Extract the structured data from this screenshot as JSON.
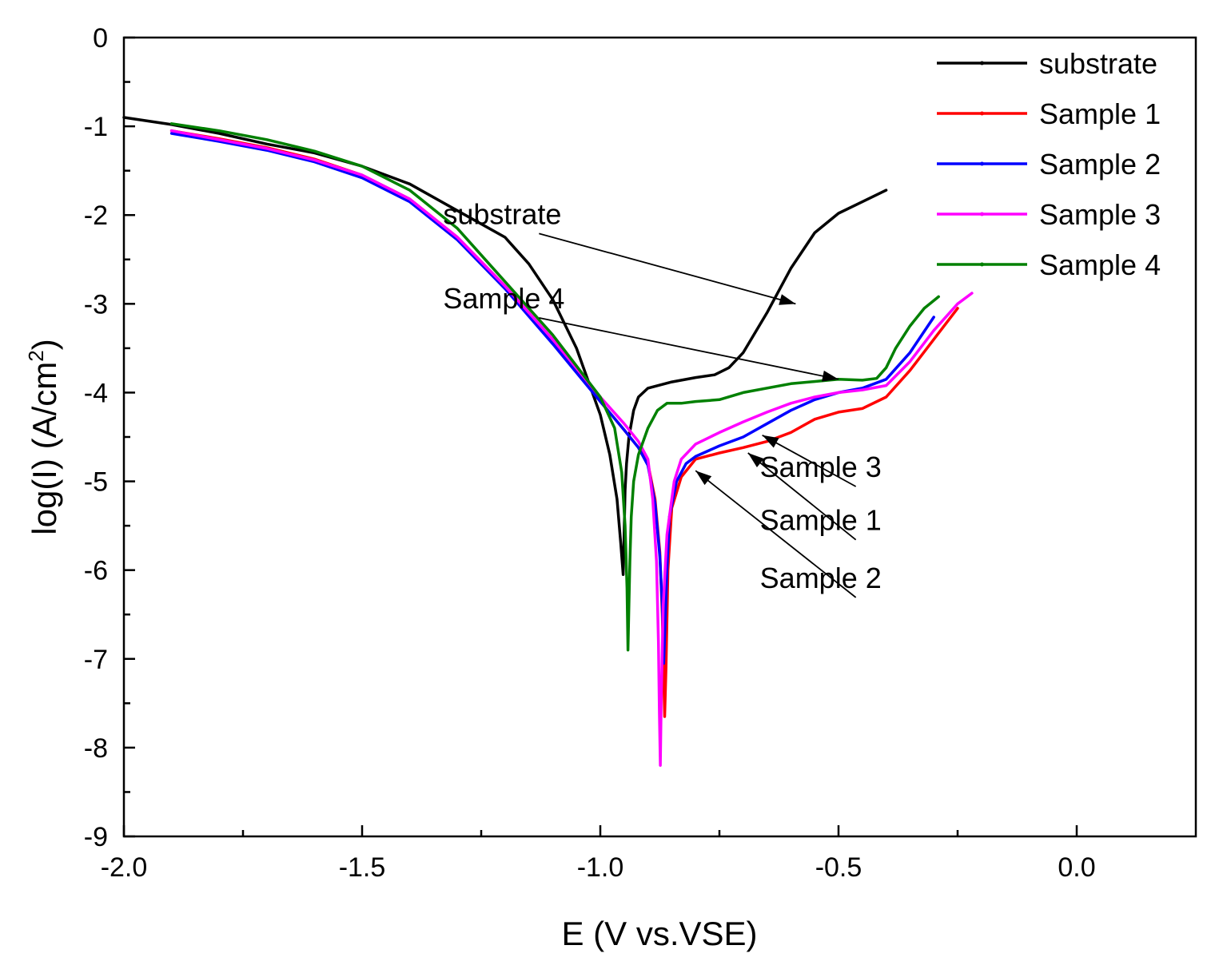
{
  "chart_data": {
    "type": "line",
    "title": "",
    "xlabel": "E (V vs.VSE)",
    "ylabel_parts": [
      "log(I) (A/cm",
      "2",
      ")"
    ],
    "xlim": [
      -2.0,
      0.25
    ],
    "ylim": [
      -9,
      0
    ],
    "x_ticks": [
      -2.0,
      -1.5,
      -1.0,
      -0.5,
      0.0
    ],
    "x_tick_labels": [
      "-2.0",
      "-1.5",
      "-1.0",
      "-0.5",
      "0.0"
    ],
    "x_minor_ticks": [
      -1.75,
      -1.25,
      -0.75,
      -0.25
    ],
    "y_ticks": [
      0,
      -1,
      -2,
      -3,
      -4,
      -5,
      -6,
      -7,
      -8,
      -9
    ],
    "y_tick_labels": [
      "0",
      "-1",
      "-2",
      "-3",
      "-4",
      "-5",
      "-6",
      "-7",
      "-8",
      "-9"
    ],
    "y_minor_ticks": [
      -0.5,
      -1.5,
      -2.5,
      -3.5,
      -4.5,
      -5.5,
      -6.5,
      -7.5,
      -8.5
    ],
    "legend_position": "top-right",
    "series": [
      {
        "name": "substrate",
        "color": "#000000",
        "x": [
          -2.0,
          -1.9,
          -1.8,
          -1.7,
          -1.6,
          -1.5,
          -1.4,
          -1.3,
          -1.2,
          -1.15,
          -1.1,
          -1.05,
          -1.0,
          -0.98,
          -0.965,
          -0.957,
          -0.952,
          -0.95,
          -0.948,
          -0.945,
          -0.94,
          -0.93,
          -0.92,
          -0.9,
          -0.85,
          -0.8,
          -0.76,
          -0.73,
          -0.7,
          -0.65,
          -0.6,
          -0.55,
          -0.5,
          -0.45,
          -0.4
        ],
        "y": [
          -0.9,
          -0.98,
          -1.08,
          -1.2,
          -1.3,
          -1.45,
          -1.65,
          -1.95,
          -2.25,
          -2.55,
          -2.95,
          -3.5,
          -4.25,
          -4.7,
          -5.2,
          -5.7,
          -6.05,
          -5.6,
          -5.1,
          -4.8,
          -4.5,
          -4.2,
          -4.05,
          -3.95,
          -3.88,
          -3.83,
          -3.8,
          -3.72,
          -3.55,
          -3.1,
          -2.6,
          -2.2,
          -1.98,
          -1.85,
          -1.72
        ]
      },
      {
        "name": "Sample 1",
        "color": "#ff0000",
        "x": [
          -1.9,
          -1.8,
          -1.7,
          -1.6,
          -1.5,
          -1.4,
          -1.3,
          -1.2,
          -1.1,
          -1.0,
          -0.95,
          -0.92,
          -0.9,
          -0.885,
          -0.875,
          -0.87,
          -0.867,
          -0.865,
          -0.862,
          -0.858,
          -0.85,
          -0.83,
          -0.8,
          -0.75,
          -0.7,
          -0.65,
          -0.6,
          -0.55,
          -0.5,
          -0.45,
          -0.4,
          -0.35,
          -0.3,
          -0.25
        ],
        "y": [
          -1.05,
          -1.14,
          -1.24,
          -1.37,
          -1.55,
          -1.82,
          -2.25,
          -2.8,
          -3.4,
          -4.1,
          -4.42,
          -4.62,
          -4.8,
          -5.2,
          -5.8,
          -6.5,
          -7.2,
          -7.65,
          -7.1,
          -6.0,
          -5.3,
          -4.95,
          -4.75,
          -4.68,
          -4.62,
          -4.55,
          -4.45,
          -4.3,
          -4.22,
          -4.18,
          -4.05,
          -3.75,
          -3.4,
          -3.05
        ]
      },
      {
        "name": "Sample 2",
        "color": "#0000ff",
        "x": [
          -1.9,
          -1.8,
          -1.7,
          -1.6,
          -1.5,
          -1.4,
          -1.3,
          -1.2,
          -1.1,
          -1.0,
          -0.95,
          -0.92,
          -0.9,
          -0.885,
          -0.875,
          -0.87,
          -0.867,
          -0.864,
          -0.86,
          -0.855,
          -0.84,
          -0.82,
          -0.8,
          -0.75,
          -0.7,
          -0.65,
          -0.6,
          -0.55,
          -0.5,
          -0.45,
          -0.4,
          -0.35,
          -0.3
        ],
        "y": [
          -1.08,
          -1.17,
          -1.27,
          -1.4,
          -1.58,
          -1.85,
          -2.28,
          -2.83,
          -3.45,
          -4.1,
          -4.42,
          -4.62,
          -4.82,
          -5.25,
          -5.85,
          -6.4,
          -7.05,
          -6.6,
          -6.0,
          -5.4,
          -5.0,
          -4.8,
          -4.72,
          -4.6,
          -4.5,
          -4.35,
          -4.2,
          -4.08,
          -4.0,
          -3.95,
          -3.85,
          -3.55,
          -3.15
        ]
      },
      {
        "name": "Sample 3",
        "color": "#ff00ff",
        "x": [
          -1.9,
          -1.8,
          -1.7,
          -1.6,
          -1.5,
          -1.4,
          -1.3,
          -1.2,
          -1.1,
          -1.0,
          -0.95,
          -0.92,
          -0.9,
          -0.89,
          -0.882,
          -0.878,
          -0.876,
          -0.874,
          -0.872,
          -0.868,
          -0.86,
          -0.845,
          -0.83,
          -0.8,
          -0.75,
          -0.7,
          -0.65,
          -0.6,
          -0.55,
          -0.5,
          -0.45,
          -0.4,
          -0.35,
          -0.3,
          -0.25,
          -0.22
        ],
        "y": [
          -1.05,
          -1.15,
          -1.25,
          -1.38,
          -1.55,
          -1.82,
          -2.25,
          -2.8,
          -3.4,
          -4.05,
          -4.35,
          -4.55,
          -4.75,
          -5.2,
          -5.9,
          -6.8,
          -7.6,
          -8.2,
          -7.4,
          -6.4,
          -5.6,
          -5.0,
          -4.75,
          -4.58,
          -4.45,
          -4.33,
          -4.22,
          -4.12,
          -4.05,
          -4.0,
          -3.97,
          -3.92,
          -3.65,
          -3.3,
          -3.0,
          -2.88
        ]
      },
      {
        "name": "Sample 4",
        "color": "#008000",
        "x": [
          -1.9,
          -1.8,
          -1.7,
          -1.6,
          -1.5,
          -1.4,
          -1.3,
          -1.2,
          -1.1,
          -1.0,
          -0.97,
          -0.955,
          -0.948,
          -0.944,
          -0.942,
          -0.94,
          -0.938,
          -0.935,
          -0.93,
          -0.92,
          -0.9,
          -0.88,
          -0.86,
          -0.83,
          -0.8,
          -0.75,
          -0.7,
          -0.6,
          -0.5,
          -0.45,
          -0.42,
          -0.4,
          -0.38,
          -0.35,
          -0.32,
          -0.29
        ],
        "y": [
          -0.97,
          -1.05,
          -1.15,
          -1.28,
          -1.45,
          -1.72,
          -2.15,
          -2.75,
          -3.35,
          -4.05,
          -4.4,
          -4.9,
          -5.5,
          -6.2,
          -6.9,
          -6.4,
          -5.9,
          -5.4,
          -5.0,
          -4.7,
          -4.4,
          -4.2,
          -4.12,
          -4.12,
          -4.1,
          -4.08,
          -4.0,
          -3.9,
          -3.85,
          -3.86,
          -3.84,
          -3.72,
          -3.5,
          -3.25,
          -3.05,
          -2.92
        ]
      }
    ],
    "annotations": [
      {
        "text": "substrate",
        "tx": -1.33,
        "ty": -2.1,
        "ax": -0.59,
        "ay": -3.0
      },
      {
        "text": "Sample 4",
        "tx": -1.33,
        "ty": -3.05,
        "ax": -0.5,
        "ay": -3.85
      },
      {
        "text": "Sample 3",
        "tx": -0.665,
        "ty": -4.95,
        "ax": -0.66,
        "ay": -4.48
      },
      {
        "text": "Sample 1",
        "tx": -0.665,
        "ty": -5.55,
        "ax": -0.69,
        "ay": -4.68
      },
      {
        "text": "Sample 2",
        "tx": -0.665,
        "ty": -6.2,
        "ax": -0.8,
        "ay": -4.88
      }
    ]
  }
}
